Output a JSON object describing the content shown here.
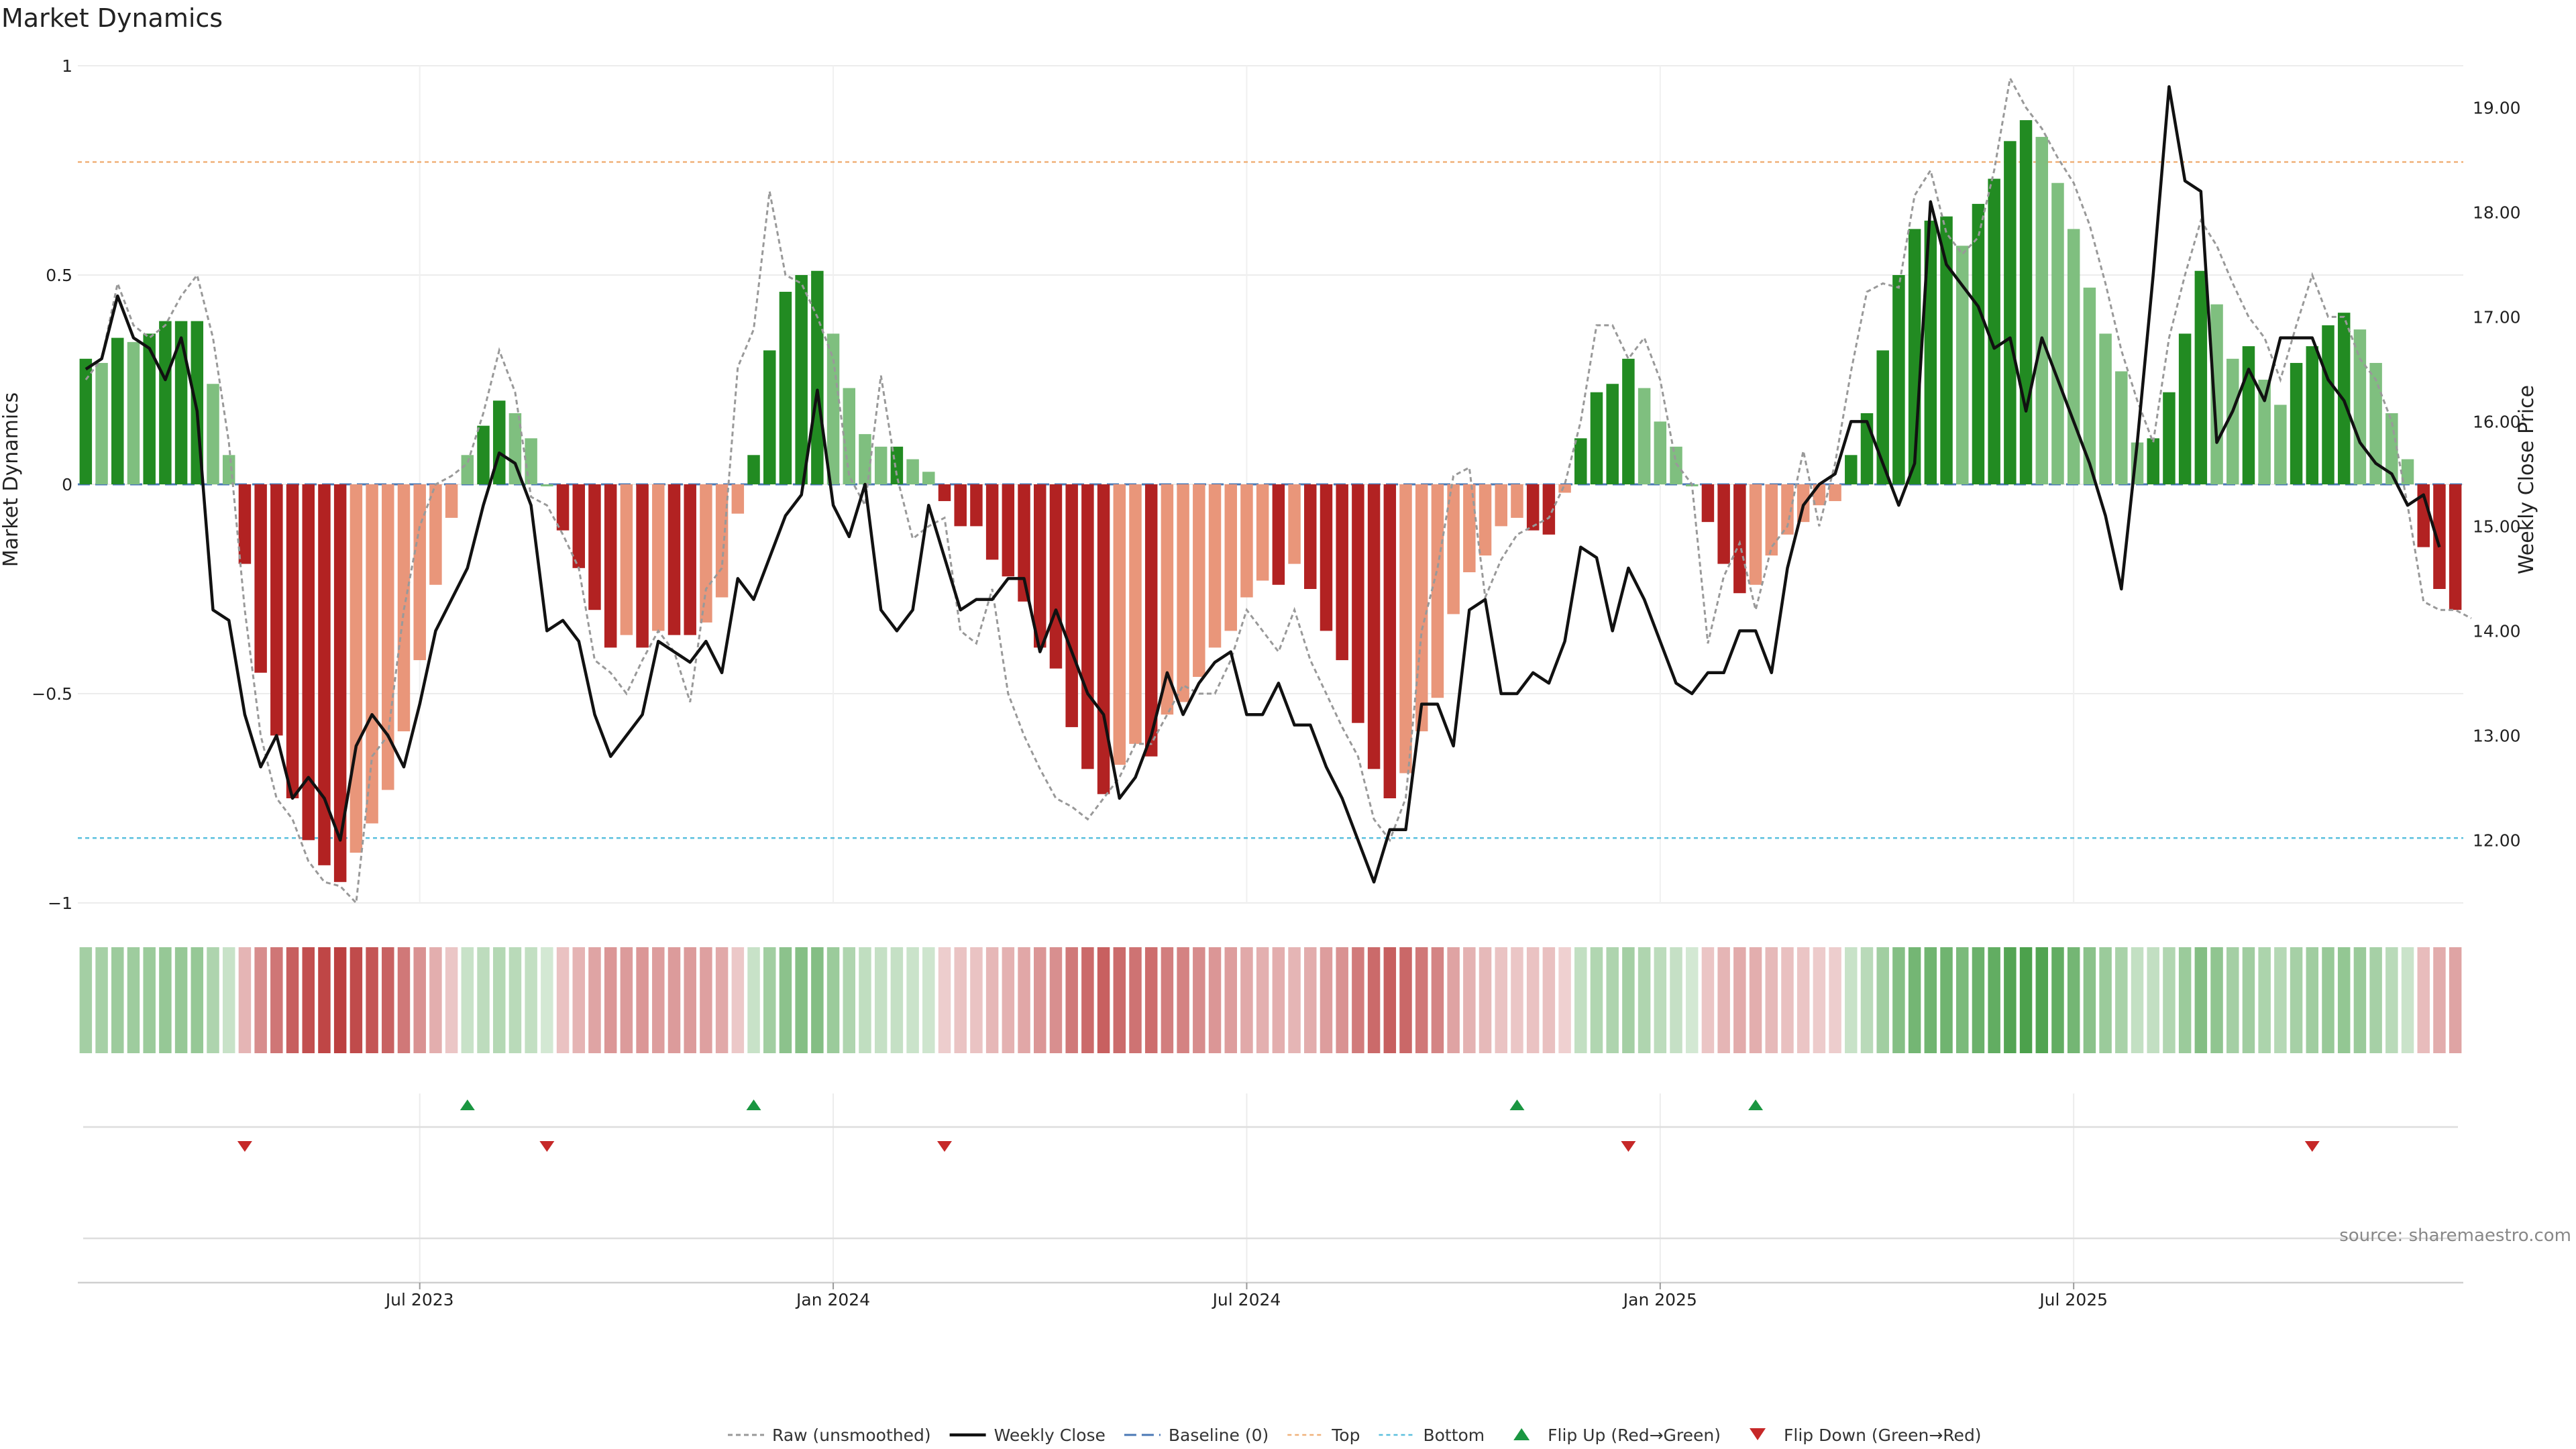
{
  "chart_data": {
    "type": "bar",
    "title": "Market Dynamics",
    "ylabel": "Market Dynamics",
    "y2label": "Weekly Close Price",
    "ylim": [
      -1,
      1
    ],
    "y2lim": [
      11.4,
      19.4
    ],
    "yticks": [
      "1",
      "0.5",
      "0",
      "−0.5",
      "−1"
    ],
    "yticks_values": [
      1,
      0.5,
      0,
      -0.5,
      -1
    ],
    "y2ticks": [
      "19.00",
      "18.00",
      "17.00",
      "16.00",
      "15.00",
      "14.00",
      "13.00",
      "12.00"
    ],
    "y2ticks_values": [
      19,
      18,
      17,
      16,
      15,
      14,
      13,
      12
    ],
    "xticks": [
      "Jul 2023",
      "Jan 2024",
      "Jul 2024",
      "Jan 2025",
      "Jul 2025"
    ],
    "xticks_week_index": [
      21.5,
      47.5,
      73.5,
      99.5,
      125.5
    ],
    "grid": true,
    "legend_placement": "bottom",
    "top_level": 0.77,
    "bottom_level": -0.845,
    "colors": {
      "strong_green": "#228b22",
      "weak_green": "#7fbf7f",
      "strong_red": "#b22222",
      "weak_red": "#e9967a",
      "close_line": "#111111",
      "raw_line": "#999999",
      "baseline": "#4a78b5",
      "top_line": "#f0b27a",
      "bottom_line": "#5bc0de",
      "flip_up": "#1a9641",
      "flip_down": "#c62828"
    },
    "series": [
      {
        "name": "Market Dynamics",
        "values": [
          0.3,
          0.29,
          0.35,
          0.34,
          0.36,
          0.39,
          0.39,
          0.39,
          0.24,
          0.07,
          -0.19,
          -0.45,
          -0.6,
          -0.75,
          -0.85,
          -0.91,
          -0.95,
          -0.88,
          -0.81,
          -0.73,
          -0.59,
          -0.42,
          -0.24,
          -0.08,
          0.07,
          0.14,
          0.2,
          0.17,
          0.11,
          0.0,
          -0.11,
          -0.2,
          -0.3,
          -0.39,
          -0.36,
          -0.39,
          -0.35,
          -0.36,
          -0.36,
          -0.33,
          -0.27,
          -0.07,
          0.07,
          0.32,
          0.46,
          0.5,
          0.51,
          0.36,
          0.23,
          0.12,
          0.09,
          0.09,
          0.06,
          0.03,
          -0.04,
          -0.1,
          -0.1,
          -0.18,
          -0.22,
          -0.28,
          -0.39,
          -0.44,
          -0.58,
          -0.68,
          -0.74,
          -0.67,
          -0.62,
          -0.65,
          -0.55,
          -0.52,
          -0.46,
          -0.39,
          -0.35,
          -0.27,
          -0.23,
          -0.24,
          -0.19,
          -0.25,
          -0.35,
          -0.42,
          -0.57,
          -0.68,
          -0.75,
          -0.69,
          -0.59,
          -0.51,
          -0.31,
          -0.21,
          -0.17,
          -0.1,
          -0.08,
          -0.11,
          -0.12,
          -0.02,
          0.11,
          0.22,
          0.24,
          0.3,
          0.23,
          0.15,
          0.09,
          0.0,
          -0.09,
          -0.19,
          -0.26,
          -0.24,
          -0.17,
          -0.12,
          -0.09,
          -0.05,
          -0.04,
          0.07,
          0.17,
          0.32,
          0.5,
          0.61,
          0.63,
          0.64,
          0.57,
          0.67,
          0.73,
          0.82,
          0.87,
          0.83,
          0.72,
          0.61,
          0.47,
          0.36,
          0.27,
          0.1,
          0.11,
          0.22,
          0.36,
          0.51,
          0.43,
          0.3,
          0.33,
          0.25,
          0.19,
          0.29,
          0.33,
          0.38,
          0.41,
          0.37,
          0.29,
          0.17,
          0.06,
          -0.15,
          -0.25,
          -0.3
        ]
      },
      {
        "name": "Raw (unsmoothed)",
        "values": [
          0.25,
          0.3,
          0.48,
          0.38,
          0.35,
          0.38,
          0.45,
          0.5,
          0.35,
          0.1,
          -0.3,
          -0.6,
          -0.75,
          -0.8,
          -0.9,
          -0.95,
          -0.96,
          -1.0,
          -0.65,
          -0.6,
          -0.3,
          -0.1,
          0.0,
          0.02,
          0.05,
          0.17,
          0.32,
          0.22,
          -0.03,
          -0.05,
          -0.12,
          -0.2,
          -0.42,
          -0.45,
          -0.5,
          -0.42,
          -0.35,
          -0.4,
          -0.52,
          -0.25,
          -0.2,
          0.28,
          0.37,
          0.7,
          0.5,
          0.48,
          0.4,
          0.3,
          0.02,
          -0.05,
          0.26,
          0.02,
          -0.13,
          -0.1,
          -0.08,
          -0.35,
          -0.38,
          -0.25,
          -0.5,
          -0.6,
          -0.68,
          -0.75,
          -0.77,
          -0.8,
          -0.75,
          -0.7,
          -0.62,
          -0.62,
          -0.55,
          -0.48,
          -0.5,
          -0.5,
          -0.42,
          -0.3,
          -0.35,
          -0.4,
          -0.3,
          -0.42,
          -0.5,
          -0.58,
          -0.65,
          -0.8,
          -0.85,
          -0.75,
          -0.35,
          -0.2,
          0.02,
          0.04,
          -0.27,
          -0.18,
          -0.12,
          -0.1,
          -0.08,
          0.0,
          0.15,
          0.38,
          0.38,
          0.3,
          0.35,
          0.25,
          0.05,
          0.0,
          -0.38,
          -0.22,
          -0.14,
          -0.3,
          -0.15,
          -0.1,
          0.08,
          -0.1,
          0.05,
          0.27,
          0.46,
          0.48,
          0.47,
          0.69,
          0.75,
          0.6,
          0.55,
          0.59,
          0.75,
          0.97,
          0.9,
          0.85,
          0.78,
          0.72,
          0.62,
          0.48,
          0.32,
          0.2,
          0.1,
          0.35,
          0.5,
          0.63,
          0.57,
          0.48,
          0.4,
          0.35,
          0.25,
          0.38,
          0.5,
          0.4,
          0.4,
          0.3,
          0.25,
          0.15,
          -0.05,
          -0.28,
          -0.3,
          -0.3,
          -0.32
        ]
      },
      {
        "name": "Weekly Close",
        "values": [
          16.5,
          16.6,
          17.2,
          16.8,
          16.7,
          16.4,
          16.8,
          16.1,
          14.2,
          14.1,
          13.2,
          12.7,
          13.0,
          12.4,
          12.6,
          12.4,
          12.0,
          12.9,
          13.2,
          13.0,
          12.7,
          13.3,
          14.0,
          14.3,
          14.6,
          15.2,
          15.7,
          15.6,
          15.2,
          14.0,
          14.1,
          13.9,
          13.2,
          12.8,
          13.0,
          13.2,
          13.9,
          13.8,
          13.7,
          13.9,
          13.6,
          14.5,
          14.3,
          14.7,
          15.1,
          15.3,
          16.3,
          15.2,
          14.9,
          15.4,
          14.2,
          14.0,
          14.2,
          15.2,
          14.7,
          14.2,
          14.3,
          14.3,
          14.5,
          14.5,
          13.8,
          14.2,
          13.8,
          13.4,
          13.2,
          12.4,
          12.6,
          13.0,
          13.6,
          13.2,
          13.5,
          13.7,
          13.8,
          13.2,
          13.2,
          13.5,
          13.1,
          13.1,
          12.7,
          12.4,
          12.0,
          11.6,
          12.1,
          12.1,
          13.3,
          13.3,
          12.9,
          14.2,
          14.3,
          13.4,
          13.4,
          13.6,
          13.5,
          13.9,
          14.8,
          14.7,
          14.0,
          14.6,
          14.3,
          13.9,
          13.5,
          13.4,
          13.6,
          13.6,
          14.0,
          14.0,
          13.6,
          14.6,
          15.2,
          15.4,
          15.5,
          16.0,
          16.0,
          15.6,
          15.2,
          15.6,
          18.1,
          17.5,
          17.3,
          17.1,
          16.7,
          16.8,
          16.1,
          16.8,
          16.4,
          16.0,
          15.6,
          15.1,
          14.4,
          15.8,
          17.4,
          19.2,
          18.3,
          18.2,
          15.8,
          16.1,
          16.5,
          16.2,
          16.8,
          16.8,
          16.8,
          16.4,
          16.2,
          15.8,
          15.6,
          15.5,
          15.2,
          15.3,
          14.8
        ]
      },
      {
        "name": "Baseline (0)"
      },
      {
        "name": "Top"
      },
      {
        "name": "Bottom"
      },
      {
        "name": "Flip Up (Red→Green)",
        "week_index": [
          24,
          42,
          90,
          105
        ]
      },
      {
        "name": "Flip Down (Green→Red)",
        "week_index": [
          10,
          29,
          54,
          97,
          140
        ]
      }
    ]
  },
  "source_note": "source: sharemaestro.com"
}
